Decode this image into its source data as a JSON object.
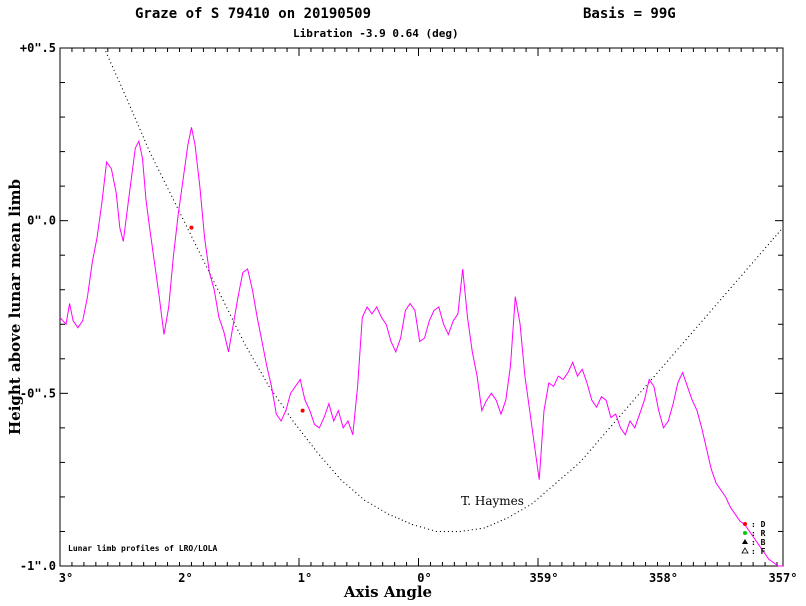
{
  "header": {
    "title": "Graze of S  79410 on 20190509",
    "basis": "Basis = 99G",
    "libration": "Libration    -3.9  0.64 (deg)"
  },
  "annotations": {
    "source": "Lunar limb profiles of LRO/LOLA",
    "observer": "T. Haymes"
  },
  "legend": [
    {
      "symbol": "filled-circle",
      "color": "#ff0000",
      "label": ": D"
    },
    {
      "symbol": "filled-circle",
      "color": "#00cc00",
      "label": ": R"
    },
    {
      "symbol": "filled-triangle",
      "color": "#000000",
      "label": ": B"
    },
    {
      "symbol": "open-triangle",
      "color": "#000000",
      "label": ": F"
    }
  ],
  "chart_data": {
    "type": "line",
    "xlabel": "Axis Angle",
    "ylabel": "Height above lunar mean limb",
    "xlim": [
      3.05,
      357.0
    ],
    "ylim": [
      -1.0,
      0.5
    ],
    "x_ticks": [
      {
        "value": 3,
        "label": "3°"
      },
      {
        "value": 2,
        "label": "2°"
      },
      {
        "value": 1,
        "label": "1°"
      },
      {
        "value": 0,
        "label": "0°"
      },
      {
        "value": 359,
        "label": "359°"
      },
      {
        "value": 358,
        "label": "358°"
      },
      {
        "value": 357,
        "label": "357°"
      }
    ],
    "y_ticks": [
      {
        "value": 0.5,
        "label": "+0\".5"
      },
      {
        "value": 0.0,
        "label": "0\".0"
      },
      {
        "value": -0.5,
        "label": "-0\".5"
      },
      {
        "value": -1.0,
        "label": "-1\".0"
      }
    ],
    "series": [
      {
        "kind": "limb-profile",
        "color": "#ff00ff",
        "points": [
          [
            3.05,
            -0.28
          ],
          [
            3.0,
            -0.3
          ],
          [
            2.97,
            -0.24
          ],
          [
            2.94,
            -0.29
          ],
          [
            2.9,
            -0.31
          ],
          [
            2.86,
            -0.29
          ],
          [
            2.82,
            -0.22
          ],
          [
            2.78,
            -0.12
          ],
          [
            2.74,
            -0.05
          ],
          [
            2.7,
            0.05
          ],
          [
            2.66,
            0.17
          ],
          [
            2.62,
            0.15
          ],
          [
            2.58,
            0.08
          ],
          [
            2.55,
            -0.02
          ],
          [
            2.52,
            -0.06
          ],
          [
            2.48,
            0.05
          ],
          [
            2.45,
            0.13
          ],
          [
            2.42,
            0.21
          ],
          [
            2.39,
            0.23
          ],
          [
            2.36,
            0.18
          ],
          [
            2.33,
            0.06
          ],
          [
            2.3,
            -0.02
          ],
          [
            2.26,
            -0.12
          ],
          [
            2.22,
            -0.22
          ],
          [
            2.18,
            -0.33
          ],
          [
            2.14,
            -0.25
          ],
          [
            2.1,
            -0.1
          ],
          [
            2.06,
            0.02
          ],
          [
            2.02,
            0.12
          ],
          [
            1.98,
            0.22
          ],
          [
            1.95,
            0.27
          ],
          [
            1.92,
            0.22
          ],
          [
            1.88,
            0.1
          ],
          [
            1.84,
            -0.05
          ],
          [
            1.8,
            -0.15
          ],
          [
            1.76,
            -0.2
          ],
          [
            1.72,
            -0.28
          ],
          [
            1.68,
            -0.32
          ],
          [
            1.64,
            -0.38
          ],
          [
            1.6,
            -0.3
          ],
          [
            1.56,
            -0.22
          ],
          [
            1.52,
            -0.15
          ],
          [
            1.48,
            -0.14
          ],
          [
            1.44,
            -0.2
          ],
          [
            1.4,
            -0.28
          ],
          [
            1.36,
            -0.35
          ],
          [
            1.32,
            -0.42
          ],
          [
            1.28,
            -0.48
          ],
          [
            1.24,
            -0.56
          ],
          [
            1.2,
            -0.58
          ],
          [
            1.16,
            -0.55
          ],
          [
            1.12,
            -0.5
          ],
          [
            1.08,
            -0.48
          ],
          [
            1.04,
            -0.46
          ],
          [
            1.0,
            -0.52
          ],
          [
            0.96,
            -0.55
          ],
          [
            0.92,
            -0.59
          ],
          [
            0.88,
            -0.6
          ],
          [
            0.84,
            -0.57
          ],
          [
            0.8,
            -0.53
          ],
          [
            0.76,
            -0.58
          ],
          [
            0.72,
            -0.55
          ],
          [
            0.68,
            -0.6
          ],
          [
            0.64,
            -0.58
          ],
          [
            0.6,
            -0.62
          ],
          [
            0.56,
            -0.48
          ],
          [
            0.52,
            -0.28
          ],
          [
            0.48,
            -0.25
          ],
          [
            0.44,
            -0.27
          ],
          [
            0.4,
            -0.25
          ],
          [
            0.36,
            -0.28
          ],
          [
            0.32,
            -0.3
          ],
          [
            0.28,
            -0.35
          ],
          [
            0.24,
            -0.38
          ],
          [
            0.2,
            -0.34
          ],
          [
            0.16,
            -0.26
          ],
          [
            0.12,
            -0.24
          ],
          [
            0.08,
            -0.26
          ],
          [
            0.04,
            -0.35
          ],
          [
            0.0,
            -0.34
          ],
          [
            359.96,
            -0.29
          ],
          [
            359.92,
            -0.26
          ],
          [
            359.88,
            -0.25
          ],
          [
            359.84,
            -0.3
          ],
          [
            359.8,
            -0.33
          ],
          [
            359.76,
            -0.29
          ],
          [
            359.72,
            -0.27
          ],
          [
            359.68,
            -0.14
          ],
          [
            359.64,
            -0.28
          ],
          [
            359.6,
            -0.38
          ],
          [
            359.56,
            -0.45
          ],
          [
            359.52,
            -0.55
          ],
          [
            359.48,
            -0.52
          ],
          [
            359.44,
            -0.5
          ],
          [
            359.4,
            -0.52
          ],
          [
            359.36,
            -0.56
          ],
          [
            359.32,
            -0.52
          ],
          [
            359.28,
            -0.42
          ],
          [
            359.24,
            -0.22
          ],
          [
            359.2,
            -0.3
          ],
          [
            359.16,
            -0.45
          ],
          [
            359.12,
            -0.55
          ],
          [
            359.08,
            -0.65
          ],
          [
            359.04,
            -0.75
          ],
          [
            359.0,
            -0.55
          ],
          [
            358.96,
            -0.47
          ],
          [
            358.92,
            -0.48
          ],
          [
            358.88,
            -0.45
          ],
          [
            358.84,
            -0.46
          ],
          [
            358.8,
            -0.44
          ],
          [
            358.76,
            -0.41
          ],
          [
            358.72,
            -0.45
          ],
          [
            358.68,
            -0.43
          ],
          [
            358.64,
            -0.47
          ],
          [
            358.6,
            -0.52
          ],
          [
            358.56,
            -0.54
          ],
          [
            358.52,
            -0.51
          ],
          [
            358.48,
            -0.52
          ],
          [
            358.44,
            -0.57
          ],
          [
            358.4,
            -0.56
          ],
          [
            358.36,
            -0.6
          ],
          [
            358.32,
            -0.62
          ],
          [
            358.28,
            -0.58
          ],
          [
            358.24,
            -0.6
          ],
          [
            358.2,
            -0.56
          ],
          [
            358.16,
            -0.52
          ],
          [
            358.12,
            -0.46
          ],
          [
            358.08,
            -0.48
          ],
          [
            358.04,
            -0.55
          ],
          [
            358.0,
            -0.6
          ],
          [
            357.96,
            -0.58
          ],
          [
            357.92,
            -0.53
          ],
          [
            357.88,
            -0.47
          ],
          [
            357.84,
            -0.44
          ],
          [
            357.8,
            -0.48
          ],
          [
            357.76,
            -0.52
          ],
          [
            357.72,
            -0.55
          ],
          [
            357.68,
            -0.6
          ],
          [
            357.64,
            -0.66
          ],
          [
            357.6,
            -0.72
          ],
          [
            357.56,
            -0.76
          ],
          [
            357.52,
            -0.78
          ],
          [
            357.48,
            -0.8
          ],
          [
            357.44,
            -0.83
          ],
          [
            357.4,
            -0.85
          ],
          [
            357.36,
            -0.87
          ],
          [
            357.32,
            -0.88
          ],
          [
            357.28,
            -0.9
          ],
          [
            357.24,
            -0.92
          ],
          [
            357.2,
            -0.94
          ],
          [
            357.16,
            -0.96
          ],
          [
            357.12,
            -0.98
          ],
          [
            357.08,
            -0.99
          ],
          [
            357.04,
            -1.0
          ],
          [
            357.0,
            -1.0
          ]
        ]
      },
      {
        "kind": "graze-path",
        "color": "#000000",
        "points": [
          [
            2.68,
            0.5
          ],
          [
            2.5,
            0.36
          ],
          [
            2.3,
            0.2
          ],
          [
            2.1,
            0.06
          ],
          [
            1.9,
            -0.08
          ],
          [
            1.7,
            -0.22
          ],
          [
            1.5,
            -0.36
          ],
          [
            1.3,
            -0.48
          ],
          [
            1.1,
            -0.58
          ],
          [
            0.9,
            -0.67
          ],
          [
            0.7,
            -0.75
          ],
          [
            0.5,
            -0.81
          ],
          [
            0.3,
            -0.85
          ],
          [
            0.1,
            -0.88
          ],
          [
            359.9,
            -0.9
          ],
          [
            359.7,
            -0.9
          ],
          [
            359.5,
            -0.89
          ],
          [
            359.3,
            -0.86
          ],
          [
            359.1,
            -0.82
          ],
          [
            358.9,
            -0.76
          ],
          [
            358.7,
            -0.7
          ],
          [
            358.5,
            -0.62
          ],
          [
            358.3,
            -0.54
          ],
          [
            358.1,
            -0.46
          ],
          [
            357.9,
            -0.38
          ],
          [
            357.7,
            -0.3
          ],
          [
            357.5,
            -0.22
          ],
          [
            357.3,
            -0.14
          ],
          [
            357.1,
            -0.06
          ],
          [
            357.0,
            -0.02
          ]
        ]
      }
    ],
    "events": [
      {
        "type": "D",
        "x": 1.95,
        "y": -0.02
      },
      {
        "type": "D",
        "x": 1.02,
        "y": -0.55
      }
    ]
  }
}
